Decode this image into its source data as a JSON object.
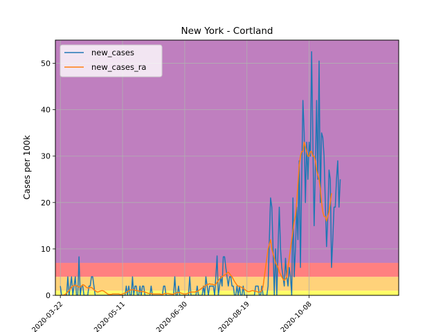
{
  "chart_data": {
    "type": "line",
    "title": "New York - Cortland",
    "xlabel": "",
    "ylabel": "Cases per 100k",
    "x_ticks": [
      "2020-03-22",
      "2020-05-11",
      "2020-06-30",
      "2020-08-19",
      "2020-10-08"
    ],
    "x_range": [
      "2020-03-22",
      "2020-11-24"
    ],
    "xlim": [
      "2020-03-18",
      "2020-12-19"
    ],
    "ylim": [
      0,
      55
    ],
    "y_ticks": [
      0,
      10,
      20,
      30,
      40,
      50
    ],
    "grid": true,
    "legend": "top-left",
    "bands": [
      {
        "from": 0,
        "to": 1,
        "color": "#ffff66"
      },
      {
        "from": 1,
        "to": 4,
        "color": "#ffd27a"
      },
      {
        "from": 4,
        "to": 7,
        "color": "#ff8080"
      },
      {
        "from": 7,
        "to": 55,
        "color": "#bf7fbf"
      }
    ],
    "series": [
      {
        "name": "new_cases",
        "color": "#1f77b4",
        "values": [
          2,
          0,
          0,
          0,
          0,
          0,
          4,
          0,
          2,
          4,
          0,
          2,
          4,
          0,
          0,
          8.3,
          0,
          2,
          2,
          0,
          0,
          0,
          0,
          2,
          2,
          4,
          4,
          2,
          0,
          0,
          0,
          0,
          0,
          0,
          0,
          0,
          0,
          0,
          0,
          0,
          0,
          0,
          0,
          0,
          0,
          0,
          0,
          0,
          0,
          0,
          0,
          0,
          0,
          2,
          0,
          2,
          0,
          0,
          4,
          0,
          2,
          2,
          0,
          0,
          2,
          0,
          2,
          2,
          0,
          0,
          0,
          0,
          0,
          2,
          0,
          0,
          0,
          0,
          0,
          0,
          0,
          0,
          0,
          2,
          2,
          0,
          0,
          0,
          0,
          0,
          0,
          0,
          4,
          0,
          0,
          2,
          0,
          0,
          0,
          0,
          0,
          0,
          0,
          0,
          4,
          0,
          0,
          0,
          0,
          0,
          2,
          0,
          0,
          0,
          0,
          2,
          0,
          4,
          2,
          0,
          2,
          2,
          2,
          2,
          0,
          4,
          8.5,
          0,
          2,
          4,
          2,
          8.3,
          8.3,
          6,
          4,
          2,
          4,
          4,
          2,
          2,
          0,
          0,
          2,
          0,
          2,
          0,
          0,
          2,
          0,
          0,
          0,
          0,
          0,
          0,
          0,
          0,
          0,
          2,
          2,
          2,
          0,
          0,
          2,
          0,
          0,
          0,
          0,
          2,
          12,
          21,
          19,
          10,
          0,
          10,
          0,
          10,
          19,
          10,
          6,
          4,
          2,
          8,
          4,
          2,
          6,
          4,
          0,
          21,
          4,
          10,
          19,
          12,
          29,
          6,
          25,
          42,
          35,
          20,
          33,
          25,
          33,
          30,
          52.5,
          33,
          15,
          27,
          42,
          25,
          50.5,
          20,
          35,
          34,
          30,
          20,
          10.5,
          17,
          27,
          25,
          6,
          12,
          19,
          19,
          25,
          29,
          19,
          25
        ]
      },
      {
        "name": "new_cases_ra",
        "color": "#ff7f0e",
        "values": [
          0,
          0,
          0,
          0.1,
          0.2,
          0.5,
          0.8,
          1,
          1.4,
          1.8,
          2,
          2.1,
          2.2,
          2.1,
          1.9,
          1.8,
          1.8,
          2,
          2.3,
          2.2,
          2,
          1.7,
          1.6,
          1.6,
          1.7,
          1.7,
          1.5,
          1.2,
          1,
          0.8,
          0.7,
          0.8,
          0.9,
          1,
          1,
          0.9,
          0.7,
          0.5,
          0.3,
          0.2,
          0.2,
          0.2,
          0.3,
          0.3,
          0.3,
          0.3,
          0.3,
          0.3,
          0.2,
          0.2,
          0.3,
          0.4,
          0.5,
          0.6,
          0.8,
          1,
          1.1,
          1.2,
          1.2,
          1.2,
          1.1,
          1,
          1,
          0.9,
          0.9,
          0.8,
          0.8,
          0.8,
          0.7,
          0.6,
          0.5,
          0.4,
          0.4,
          0.4,
          0.3,
          0.3,
          0.3,
          0.3,
          0.3,
          0.3,
          0.3,
          0.2,
          0.2,
          0.3,
          0.4,
          0.4,
          0.4,
          0.4,
          0.3,
          0.3,
          0.2,
          0.3,
          0.4,
          0.5,
          0.6,
          0.6,
          0.6,
          0.5,
          0.4,
          0.3,
          0.3,
          0.3,
          0.4,
          0.5,
          0.6,
          0.7,
          0.7,
          0.7,
          0.7,
          0.8,
          0.9,
          1,
          1.2,
          1.4,
          1.6,
          1.8,
          2,
          2.2,
          2.3,
          2.4,
          2.5,
          2.4,
          2.4,
          2.3,
          2.2,
          2.4,
          2.8,
          3.2,
          3.5,
          3.8,
          4,
          4.2,
          4.4,
          4.5,
          4.8,
          5,
          4.7,
          4.3,
          4,
          3.5,
          3,
          2.6,
          2.2,
          2,
          1.9,
          1.8,
          1.7,
          1.5,
          1.3,
          1.1,
          0.9,
          0.8,
          0.8,
          0.9,
          1,
          1,
          0.9,
          0.9,
          0.8,
          0.7,
          0.7,
          0.8,
          1,
          2,
          4,
          6,
          8,
          10,
          11,
          12,
          10,
          9,
          8,
          7,
          6.5,
          6,
          5,
          4.5,
          4,
          3.5,
          3.2,
          3.5,
          4,
          6,
          8,
          10,
          12,
          14,
          16,
          17,
          20,
          24,
          28,
          30,
          31,
          31,
          33,
          32,
          31,
          30,
          30,
          31,
          31,
          30,
          30,
          29,
          27,
          26,
          25,
          23,
          20,
          18,
          17,
          17,
          16,
          17,
          18,
          20,
          22
        ]
      }
    ]
  }
}
